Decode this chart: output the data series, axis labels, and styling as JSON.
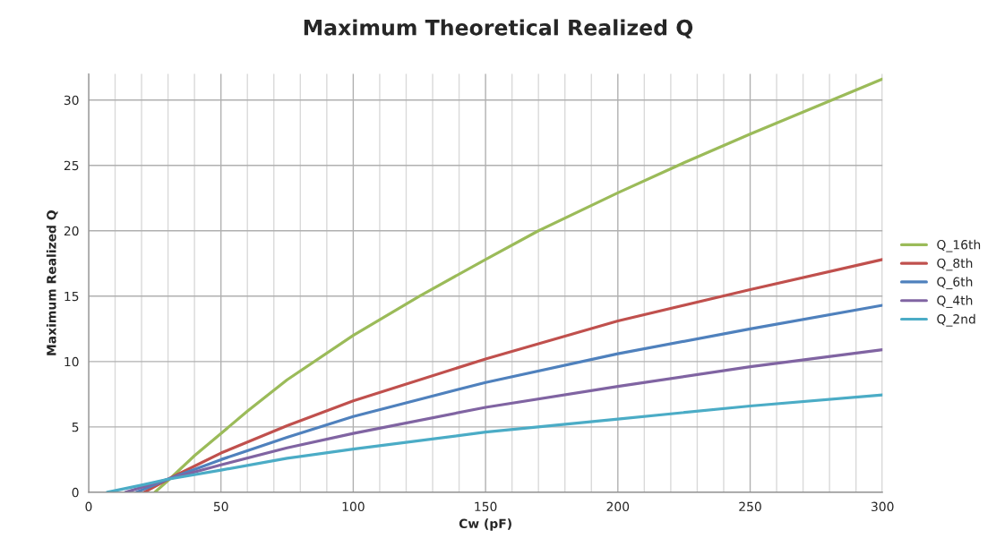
{
  "chart_data": {
    "type": "line",
    "title": "Maximum Theoretical Realized Q",
    "xlabel": "Cw (pF)",
    "ylabel": "Maximum Realized Q",
    "series": [
      {
        "name": "Q_16th",
        "color": "#9bbb59",
        "x": [
          25,
          30,
          40,
          50,
          60,
          75,
          100,
          125,
          150,
          170,
          200,
          225,
          250,
          275,
          300
        ],
        "values": [
          0,
          0.9,
          2.8,
          4.5,
          6.2,
          8.6,
          12.0,
          15.0,
          17.8,
          20.0,
          22.9,
          25.2,
          27.4,
          29.5,
          31.6
        ]
      },
      {
        "name": "Q_8th",
        "color": "#c0504d",
        "x": [
          21,
          30,
          50,
          75,
          100,
          150,
          200,
          250,
          300
        ],
        "values": [
          0,
          1.0,
          3.0,
          5.1,
          7.0,
          10.2,
          13.1,
          15.5,
          17.8
        ]
      },
      {
        "name": "Q_6th",
        "color": "#4f81bd",
        "x": [
          18,
          30,
          50,
          75,
          100,
          150,
          200,
          250,
          300
        ],
        "values": [
          0,
          1.0,
          2.5,
          4.2,
          5.8,
          8.4,
          10.6,
          12.5,
          14.3
        ]
      },
      {
        "name": "Q_4th",
        "color": "#8064a2",
        "x": [
          14,
          30,
          50,
          75,
          100,
          150,
          200,
          250,
          300
        ],
        "values": [
          0,
          1.0,
          2.1,
          3.4,
          4.5,
          6.5,
          8.1,
          9.6,
          10.9
        ]
      },
      {
        "name": "Q_2nd",
        "color": "#4bacc6",
        "x": [
          7,
          20,
          30,
          50,
          75,
          100,
          150,
          200,
          250,
          300
        ],
        "values": [
          0,
          0.55,
          1.0,
          1.7,
          2.6,
          3.3,
          4.6,
          5.6,
          6.6,
          7.45
        ]
      }
    ],
    "xlim": [
      0,
      300
    ],
    "xticks": [
      0,
      {
        "value": 10,
        "label": null
      },
      {
        "value": 20,
        "label": null
      },
      {
        "value": 30,
        "label": null
      },
      {
        "value": 40,
        "label": null
      },
      50,
      {
        "value": 60,
        "label": null
      },
      {
        "value": 70,
        "label": null
      },
      {
        "value": 80,
        "label": null
      },
      {
        "value": 90,
        "label": null
      },
      100,
      {
        "value": 110,
        "label": null
      },
      {
        "value": 120,
        "label": null
      },
      {
        "value": 130,
        "label": null
      },
      {
        "value": 140,
        "label": null
      },
      150,
      {
        "value": 160,
        "label": null
      },
      {
        "value": 170,
        "label": null
      },
      {
        "value": 180,
        "label": null
      },
      {
        "value": 190,
        "label": null
      },
      200,
      {
        "value": 210,
        "label": null
      },
      {
        "value": 220,
        "label": null
      },
      {
        "value": 230,
        "label": null
      },
      {
        "value": 240,
        "label": null
      },
      250,
      {
        "value": 260,
        "label": null
      },
      {
        "value": 270,
        "label": null
      },
      {
        "value": 280,
        "label": null
      },
      {
        "value": 290,
        "label": null
      },
      300
    ],
    "ylim": [
      0,
      32
    ],
    "yticks": [
      0,
      5,
      10,
      15,
      20,
      25,
      30
    ],
    "grid": true,
    "legend": "right",
    "marker": "none",
    "line_style": "solid"
  }
}
